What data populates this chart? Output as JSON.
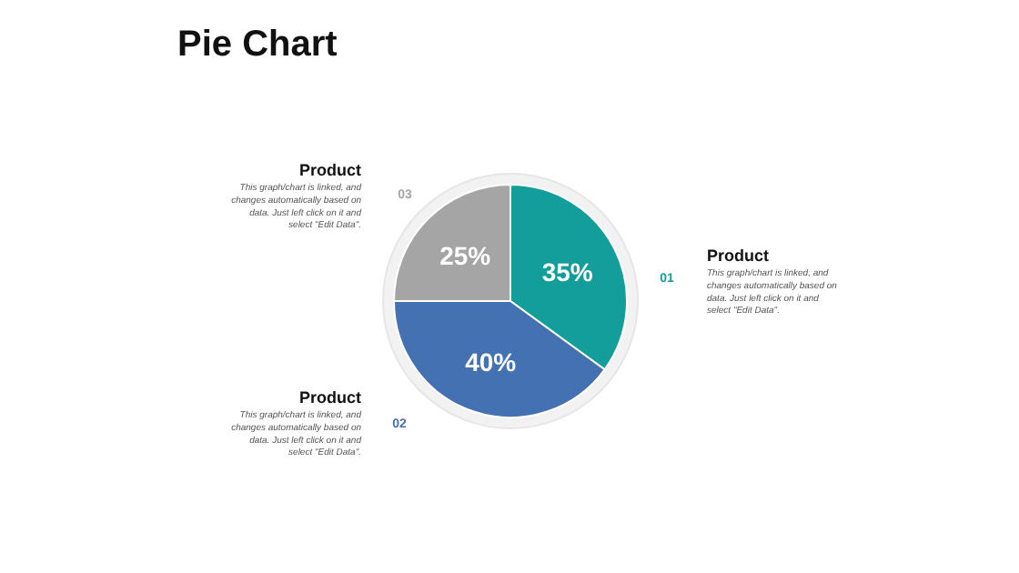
{
  "chart_data": {
    "type": "pie",
    "title": "Pie Chart",
    "categories": [
      "Product",
      "Product",
      "Product"
    ],
    "values": [
      35,
      40,
      25
    ],
    "colors": [
      "#139e9c",
      "#4471b2",
      "#a5a5a5"
    ],
    "value_labels": [
      "35%",
      "40%",
      "25%"
    ],
    "annotations": [
      "This graph/chart is linked, and changes automatically based on data. Just left click on it and select \"Edit Data\".",
      "This graph/chart is linked, and changes automatically based on data. Just left click on it and select \"Edit Data\".",
      "This graph/chart is linked, and changes automatically based on data. Just left click on it and select \"Edit Data\".",
      "01",
      "02",
      "03"
    ]
  }
}
